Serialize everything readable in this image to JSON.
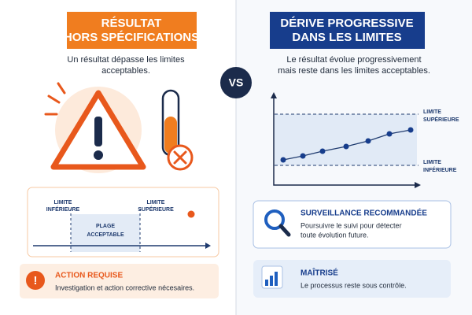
{
  "left": {
    "banner": [
      "RÉSULTAT",
      "HORS SPÉCIFICATIONS"
    ],
    "description": [
      "Un résultat dépasse les limites",
      "acceptables."
    ],
    "scale": {
      "lower_label": [
        "LIMITE",
        "INFÉRIEURE"
      ],
      "upper_label": [
        "LIMITE",
        "SUPÉRIEURE"
      ],
      "range_label": [
        "PLAGE",
        "ACCEPTABLE"
      ]
    },
    "action": {
      "title": "ACTION REQUISE",
      "text": "Investigation et action corrective nécesaires."
    }
  },
  "vs": "VS",
  "right": {
    "banner": [
      "DÉRIVE PROGRESSIVE",
      "DANS LES LIMITES"
    ],
    "description": [
      "Le résultat évolue progressivement",
      "mais reste dans les limites acceptables."
    ],
    "chart": {
      "upper_label": [
        "LIMITE",
        "SUPÉRIEURE"
      ],
      "lower_label": [
        "LIMITE",
        "INFÉRIEURE"
      ]
    },
    "monitoring": {
      "title": "SURVEILLANCE RECOMMANDÉE",
      "text": [
        "Poursuivre le suivi pour détecter",
        "toute évolution future."
      ]
    },
    "status": {
      "title": "MAÎTRISÉ",
      "text": "Le processus reste sous contrôle."
    }
  }
}
